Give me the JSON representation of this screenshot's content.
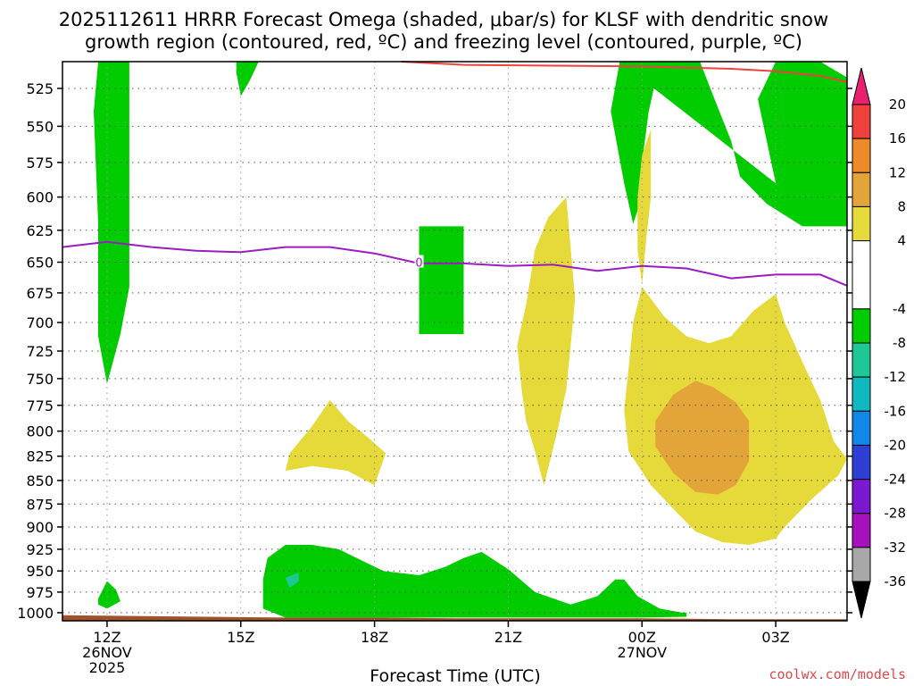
{
  "chart_data": {
    "type": "contour",
    "title_line1": "2025112611 HRRR Forecast Omega (shaded, μbar/s) for KLSF with dendritic snow",
    "title_line2": "growth region (contoured, red, ºC) and freezing level (contoured, purple, ºC)",
    "xlabel": "Forecast Time (UTC)",
    "credit": "coolwx.com/models",
    "x_range_hours": [
      11,
      28.6
    ],
    "y_range_hpa": [
      1010,
      508
    ],
    "y_ticks": [
      525,
      550,
      575,
      600,
      625,
      650,
      675,
      700,
      725,
      750,
      775,
      800,
      825,
      850,
      875,
      900,
      925,
      950,
      975,
      1000
    ],
    "x_ticks": [
      {
        "hour": 12,
        "lines": [
          "12Z",
          "26NOV",
          "2025"
        ]
      },
      {
        "hour": 15,
        "lines": [
          "15Z"
        ]
      },
      {
        "hour": 18,
        "lines": [
          "18Z"
        ]
      },
      {
        "hour": 21,
        "lines": [
          "21Z"
        ]
      },
      {
        "hour": 24,
        "lines": [
          "00Z",
          "27NOV"
        ]
      },
      {
        "hour": 27,
        "lines": [
          "03Z"
        ]
      }
    ],
    "colorbar": {
      "labels": [
        "20",
        "16",
        "12",
        "8",
        "4",
        "-4",
        "-8",
        "-12",
        "-16",
        "-20",
        "-24",
        "-28",
        "-32",
        "-36"
      ],
      "top_color": "#e8206f",
      "bottom_color": "#000000",
      "bands": [
        {
          "range": [
            16,
            20
          ],
          "color": "#f0423c"
        },
        {
          "range": [
            12,
            16
          ],
          "color": "#ef8a2a"
        },
        {
          "range": [
            8,
            12
          ],
          "color": "#e3a53a"
        },
        {
          "range": [
            4,
            8
          ],
          "color": "#e6d93a"
        },
        {
          "range": [
            -4,
            4
          ],
          "color": "#ffffff"
        },
        {
          "range": [
            -8,
            -4
          ],
          "color": "#00cc00"
        },
        {
          "range": [
            -12,
            -8
          ],
          "color": "#1ec795"
        },
        {
          "range": [
            -16,
            -12
          ],
          "color": "#10b9c0"
        },
        {
          "range": [
            -20,
            -16
          ],
          "color": "#1287ea"
        },
        {
          "range": [
            -24,
            -20
          ],
          "color": "#2f3fd6"
        },
        {
          "range": [
            -28,
            -24
          ],
          "color": "#7a19cf"
        },
        {
          "range": [
            -32,
            -28
          ],
          "color": "#a411bd"
        },
        {
          "range": [
            -36,
            -32
          ],
          "color": "#a8a8a8"
        }
      ]
    },
    "freezing_level": {
      "color": "#9b1cc0",
      "label": "0",
      "label_point": [
        19.0,
        650
      ],
      "points": [
        [
          11.0,
          638
        ],
        [
          12.0,
          634
        ],
        [
          13.0,
          638
        ],
        [
          14.0,
          641
        ],
        [
          15.0,
          642
        ],
        [
          16.0,
          638
        ],
        [
          17.0,
          638
        ],
        [
          18.0,
          643
        ],
        [
          19.0,
          651
        ],
        [
          20.0,
          651
        ],
        [
          21.0,
          653
        ],
        [
          22.0,
          652
        ],
        [
          23.0,
          657
        ],
        [
          24.0,
          653
        ],
        [
          25.0,
          655
        ],
        [
          26.0,
          663
        ],
        [
          27.0,
          660
        ],
        [
          28.0,
          660
        ],
        [
          28.6,
          669
        ]
      ]
    },
    "dgz_line": {
      "color": "#f0423c",
      "points": [
        [
          18.6,
          508
        ],
        [
          20.0,
          510
        ],
        [
          22.0,
          510.5
        ],
        [
          24.0,
          511
        ],
        [
          26.0,
          512.5
        ],
        [
          27.0,
          514
        ],
        [
          28.0,
          517
        ],
        [
          28.6,
          521
        ]
      ]
    },
    "surface_fill": {
      "color": "#a0522d",
      "top": [
        [
          11.0,
          1003
        ],
        [
          16.0,
          1006
        ],
        [
          18.0,
          1006
        ],
        [
          20.0,
          1007
        ],
        [
          24.0,
          1007
        ],
        [
          26.0,
          1008
        ],
        [
          28.6,
          1008
        ]
      ],
      "bottom_hpa": 1010
    },
    "shaded_regions": [
      {
        "level": "-4 to -8",
        "color": "#00cc00",
        "points": [
          [
            11.8,
            508
          ],
          [
            12.5,
            508
          ],
          [
            12.5,
            540
          ],
          [
            12.5,
            670
          ],
          [
            12.3,
            710
          ],
          [
            12.0,
            755
          ],
          [
            11.8,
            712
          ],
          [
            11.8,
            620
          ],
          [
            11.7,
            540
          ]
        ]
      },
      {
        "level": "-4 to -8",
        "color": "#00cc00",
        "points": [
          [
            14.9,
            508
          ],
          [
            15.4,
            508
          ],
          [
            15.2,
            520
          ],
          [
            15.0,
            530
          ],
          [
            14.9,
            515
          ]
        ]
      },
      {
        "level": "-4 to -8",
        "color": "#00cc00",
        "points": [
          [
            23.5,
            508
          ],
          [
            25.3,
            508
          ],
          [
            25.6,
            530
          ],
          [
            26.0,
            560
          ],
          [
            26.2,
            585
          ],
          [
            26.8,
            605
          ],
          [
            27.6,
            622
          ],
          [
            28.6,
            622
          ],
          [
            28.6,
            518
          ],
          [
            28.0,
            508
          ],
          [
            27.0,
            508
          ],
          [
            26.6,
            532
          ],
          [
            27.0,
            590
          ]
        ]
      },
      {
        "level": "-4 to -8",
        "color": "#00cc00",
        "points": [
          [
            23.5,
            508
          ],
          [
            24.4,
            508
          ],
          [
            24.15,
            540
          ],
          [
            24.0,
            575
          ],
          [
            23.9,
            610
          ],
          [
            23.8,
            620
          ],
          [
            23.6,
            590
          ],
          [
            23.3,
            540
          ]
        ]
      },
      {
        "level": "-4 to -8",
        "color": "#00cc00",
        "points": [
          [
            19.0,
            622
          ],
          [
            20.0,
            622
          ],
          [
            20.0,
            710
          ],
          [
            19.0,
            710
          ]
        ]
      },
      {
        "level": "-4 to -8",
        "color": "#00cc00",
        "points": [
          [
            11.8,
            983
          ],
          [
            12.0,
            962
          ],
          [
            12.2,
            972
          ],
          [
            12.3,
            986
          ],
          [
            12.0,
            995
          ],
          [
            11.8,
            990
          ]
        ]
      },
      {
        "level": "-4 to -8",
        "color": "#00cc00",
        "points": [
          [
            15.5,
            995
          ],
          [
            15.5,
            960
          ],
          [
            15.6,
            935
          ],
          [
            16.0,
            920
          ],
          [
            16.6,
            920
          ],
          [
            17.2,
            925
          ],
          [
            17.8,
            940
          ],
          [
            18.2,
            950
          ],
          [
            19.0,
            955
          ],
          [
            19.6,
            945
          ],
          [
            20.0,
            935
          ],
          [
            20.4,
            928
          ],
          [
            21.0,
            948
          ],
          [
            21.6,
            975
          ],
          [
            22.4,
            990
          ],
          [
            23.0,
            980
          ],
          [
            23.4,
            960
          ],
          [
            23.6,
            960
          ],
          [
            23.9,
            980
          ],
          [
            24.4,
            995
          ],
          [
            24.9,
            1000
          ],
          [
            25.0,
            1000
          ],
          [
            25.0,
            1005
          ],
          [
            24.0,
            1006
          ],
          [
            22.0,
            1006
          ],
          [
            20.0,
            1006
          ],
          [
            18.0,
            1006
          ],
          [
            16.0,
            1006
          ]
        ]
      },
      {
        "level": "-8 to -12",
        "color": "#1ec795",
        "points": [
          [
            16.0,
            958
          ],
          [
            16.3,
            952
          ],
          [
            16.3,
            962
          ],
          [
            16.1,
            970
          ]
        ]
      },
      {
        "level": "4 to 8",
        "color": "#e6d93a",
        "points": [
          [
            16.0,
            840
          ],
          [
            16.1,
            822
          ],
          [
            16.6,
            795
          ],
          [
            17.0,
            770
          ],
          [
            17.4,
            790
          ],
          [
            17.9,
            808
          ],
          [
            18.25,
            822
          ],
          [
            18.0,
            855
          ],
          [
            17.4,
            840
          ],
          [
            16.6,
            835
          ]
        ]
      },
      {
        "level": "4 to 8",
        "color": "#e6d93a",
        "points": [
          [
            21.2,
            720
          ],
          [
            21.4,
            685
          ],
          [
            21.6,
            640
          ],
          [
            21.9,
            615
          ],
          [
            22.3,
            600
          ],
          [
            22.5,
            680
          ],
          [
            22.4,
            720
          ],
          [
            22.3,
            760
          ],
          [
            22.1,
            800
          ],
          [
            21.8,
            855
          ],
          [
            21.6,
            820
          ],
          [
            21.4,
            790
          ],
          [
            21.3,
            760
          ]
        ]
      },
      {
        "level": "4 to 8",
        "color": "#e6d93a",
        "points": [
          [
            24.0,
            570
          ],
          [
            24.2,
            552
          ],
          [
            24.2,
            600
          ],
          [
            24.1,
            630
          ],
          [
            24.0,
            668
          ],
          [
            23.9,
            640
          ],
          [
            23.9,
            600
          ]
        ]
      },
      {
        "level": "4 to 8",
        "color": "#e6d93a",
        "points": [
          [
            24.0,
            670
          ],
          [
            24.5,
            695
          ],
          [
            25.0,
            712
          ],
          [
            25.5,
            718
          ],
          [
            26.0,
            712
          ],
          [
            26.5,
            690
          ],
          [
            27.0,
            676
          ],
          [
            27.2,
            700
          ],
          [
            27.6,
            735
          ],
          [
            28.0,
            770
          ],
          [
            28.3,
            810
          ],
          [
            28.6,
            828
          ],
          [
            28.4,
            845
          ],
          [
            27.8,
            870
          ],
          [
            27.2,
            900
          ],
          [
            27.0,
            913
          ],
          [
            26.4,
            920
          ],
          [
            25.8,
            917
          ],
          [
            25.2,
            905
          ],
          [
            24.8,
            885
          ],
          [
            24.2,
            855
          ],
          [
            23.7,
            820
          ],
          [
            23.6,
            780
          ],
          [
            23.7,
            740
          ],
          [
            23.8,
            700
          ]
        ]
      },
      {
        "level": "8 to 12",
        "color": "#e3a53a",
        "points": [
          [
            24.3,
            790
          ],
          [
            24.7,
            765
          ],
          [
            25.2,
            752
          ],
          [
            25.6,
            758
          ],
          [
            26.1,
            772
          ],
          [
            26.4,
            790
          ],
          [
            26.4,
            830
          ],
          [
            26.1,
            855
          ],
          [
            25.7,
            865
          ],
          [
            25.2,
            862
          ],
          [
            24.7,
            842
          ],
          [
            24.3,
            815
          ]
        ]
      }
    ]
  }
}
